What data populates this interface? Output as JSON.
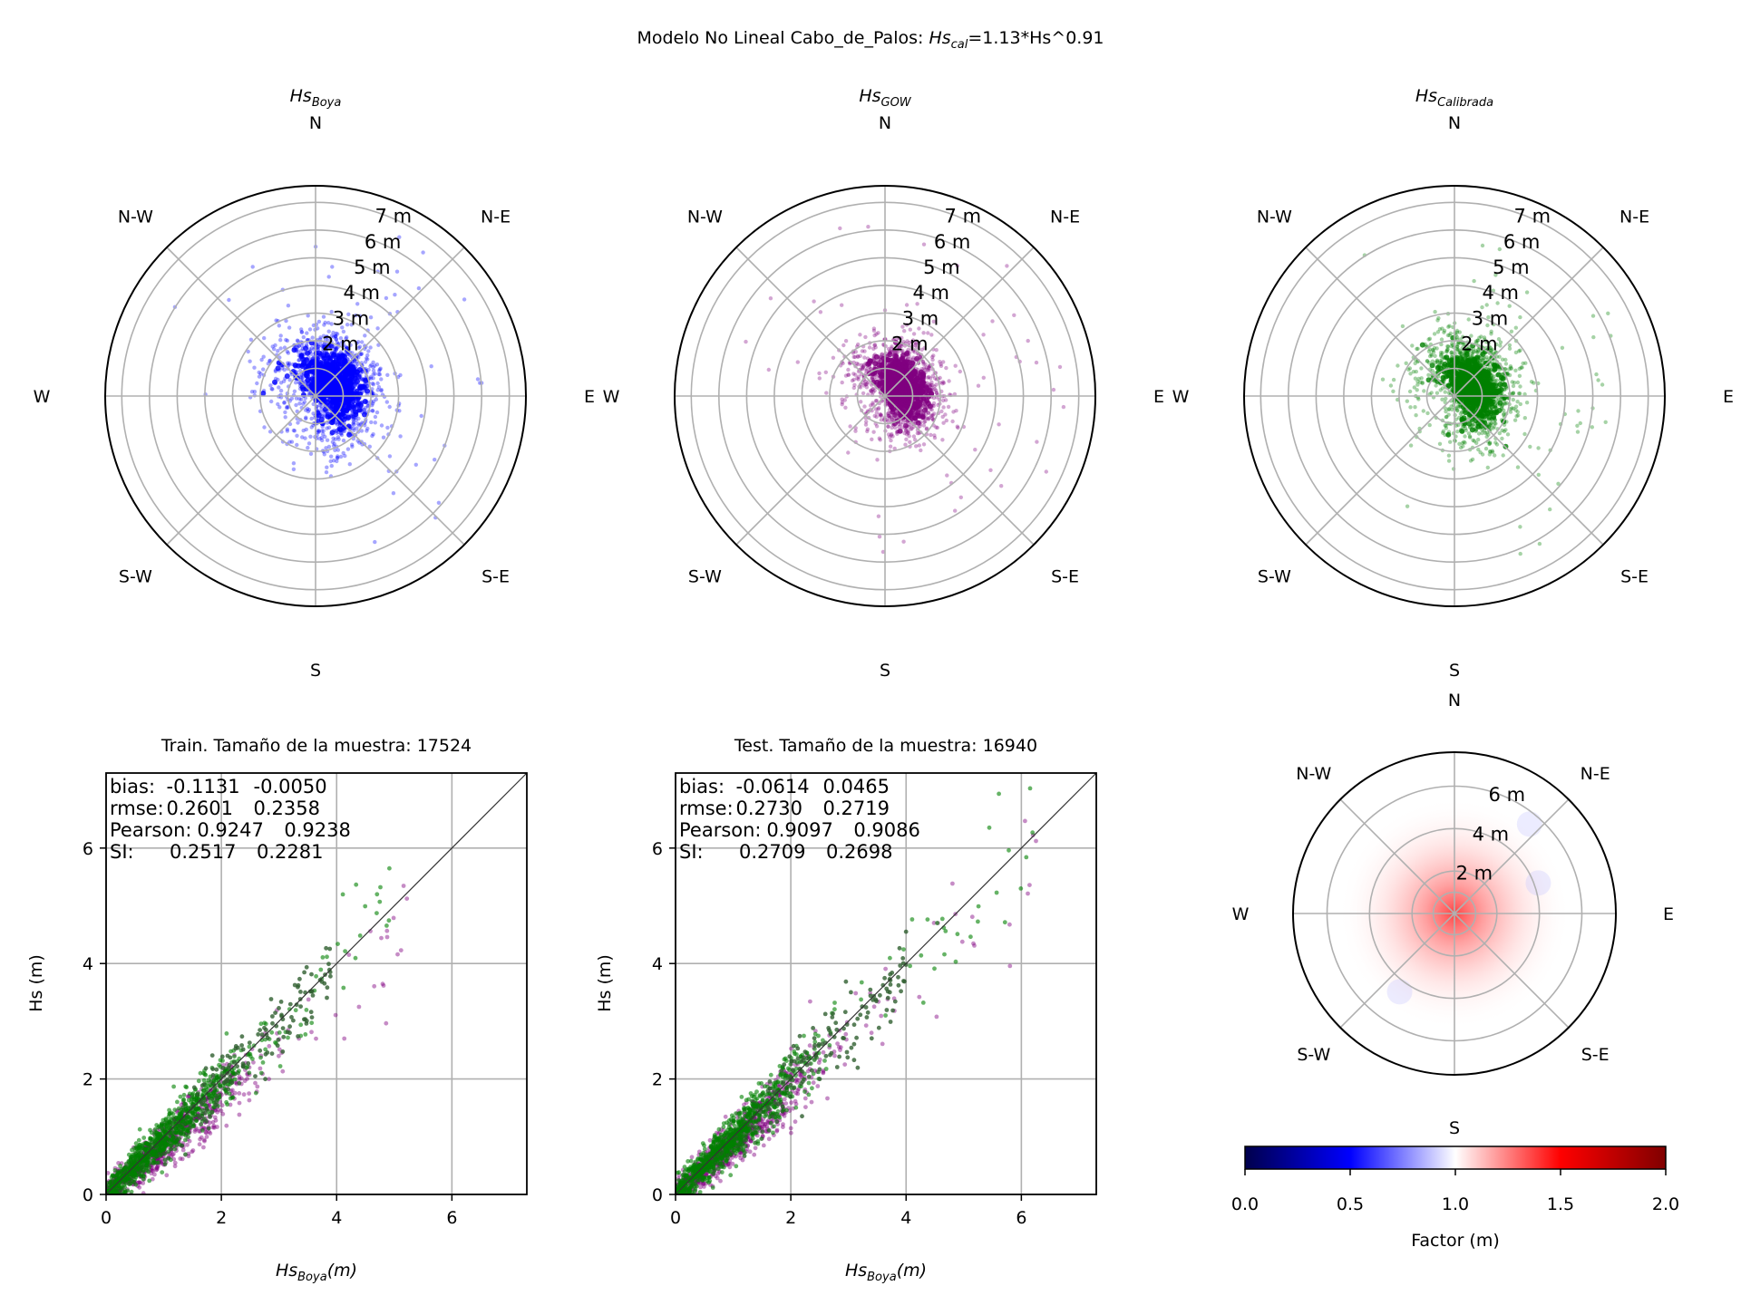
{
  "suptitle": {
    "text_prefix": "Modelo No Lineal Cabo_de_Palos: ",
    "sym": "Hs",
    "sub": "cal",
    "text_suffix": "=1.13*Hs^0.91"
  },
  "compass": {
    "N": "N",
    "NE": "N-E",
    "E": "E",
    "SE": "S-E",
    "S": "S",
    "SW": "S-W",
    "W": "W",
    "NW": "N-W"
  },
  "colors": {
    "boya": "#0000ff",
    "gow": "#800080",
    "cal": "#008000",
    "cal_dark": "#2f5f2f",
    "grid": "#b0b0b0"
  },
  "chart_data": [
    {
      "id": "polar-boya",
      "type": "scatter",
      "projection": "polar",
      "title_sym": "Hs",
      "title_sub": "Boya",
      "radial_ticks": [
        "2 m",
        "3 m",
        "4 m",
        "5 m",
        "6 m",
        "7 m"
      ],
      "rmax": 7.6,
      "color_key": "boya",
      "cloud": {
        "dir_center": 55,
        "dir_spread": 70,
        "hs_center": 1.3,
        "hs_spread": 0.9
      }
    },
    {
      "id": "polar-gow",
      "type": "scatter",
      "projection": "polar",
      "title_sym": "Hs",
      "title_sub": "GOW",
      "radial_ticks": [
        "2 m",
        "3 m",
        "4 m",
        "5 m",
        "6 m",
        "7 m"
      ],
      "rmax": 7.6,
      "color_key": "gow",
      "cloud": {
        "dir_center": 60,
        "dir_spread": 65,
        "hs_center": 1.1,
        "hs_spread": 0.8
      }
    },
    {
      "id": "polar-cal",
      "type": "scatter",
      "projection": "polar",
      "title_sym": "Hs",
      "title_sub": "Calibrada",
      "radial_ticks": [
        "2 m",
        "3 m",
        "4 m",
        "5 m",
        "6 m",
        "7 m"
      ],
      "rmax": 7.6,
      "color_key": "cal",
      "cloud": {
        "dir_center": 60,
        "dir_spread": 65,
        "hs_center": 1.2,
        "hs_spread": 0.85
      }
    },
    {
      "id": "train",
      "type": "scatter",
      "title": "Train. Tamaño de la muestra: 17524",
      "xlabel_sym": "Hs",
      "xlabel_sub": "Boya",
      "xlabel_suffix": "(m)",
      "ylabel": "Hs (m)",
      "xlim": [
        0,
        7.3
      ],
      "ylim": [
        0,
        7.3
      ],
      "xticks": [
        0,
        2,
        4,
        6
      ],
      "yticks": [
        0,
        2,
        4,
        6
      ],
      "grid": true,
      "diagonal": true,
      "stats": [
        {
          "label": "bias:",
          "gow": "-0.1131",
          "cal": "-0.0050"
        },
        {
          "label": "rmse:",
          "gow": "0.2601",
          "cal": "0.2358"
        },
        {
          "label": "Pearson:",
          "gow": "0.9247",
          "cal": "0.9238"
        },
        {
          "label": "SI:",
          "gow": "0.2517",
          "cal": "0.2281"
        }
      ],
      "series": [
        {
          "name": "GOW",
          "color_key": "gow",
          "cloud": {
            "x_max": 3.6,
            "slope": 0.85
          }
        },
        {
          "name": "Calibrada",
          "color_key": "cal",
          "cloud": {
            "x_max": 3.6,
            "slope": 0.98
          }
        }
      ]
    },
    {
      "id": "test",
      "type": "scatter",
      "title": "Test. Tamaño de la muestra: 16940",
      "xlabel_sym": "Hs",
      "xlabel_sub": "Boya",
      "xlabel_suffix": "(m)",
      "ylabel": "Hs (m)",
      "xlim": [
        0,
        7.3
      ],
      "ylim": [
        0,
        7.3
      ],
      "xticks": [
        0,
        2,
        4,
        6
      ],
      "yticks": [
        0,
        2,
        4,
        6
      ],
      "grid": true,
      "diagonal": true,
      "stats": [
        {
          "label": "bias:",
          "gow": "-0.0614",
          "cal": "0.0465"
        },
        {
          "label": "rmse:",
          "gow": "0.2730",
          "cal": "0.2719"
        },
        {
          "label": "Pearson:",
          "gow": "0.9097",
          "cal": "0.9086"
        },
        {
          "label": "SI:",
          "gow": "0.2709",
          "cal": "0.2698"
        }
      ],
      "series": [
        {
          "name": "GOW",
          "color_key": "gow",
          "cloud": {
            "x_max": 3.6,
            "slope": 0.9
          }
        },
        {
          "name": "Calibrada",
          "color_key": "cal",
          "cloud": {
            "x_max": 3.6,
            "slope": 1.0
          }
        }
      ]
    },
    {
      "id": "polar-factor",
      "type": "heatmap",
      "projection": "polar",
      "radial_ticks": [
        "2 m",
        "4 m",
        "6 m"
      ],
      "rmax": 7.6,
      "colorbar": {
        "label": "Factor (m)",
        "ticks": [
          "0.0",
          "0.5",
          "1.0",
          "1.5",
          "2.0"
        ],
        "range": [
          0,
          2
        ]
      }
    }
  ]
}
